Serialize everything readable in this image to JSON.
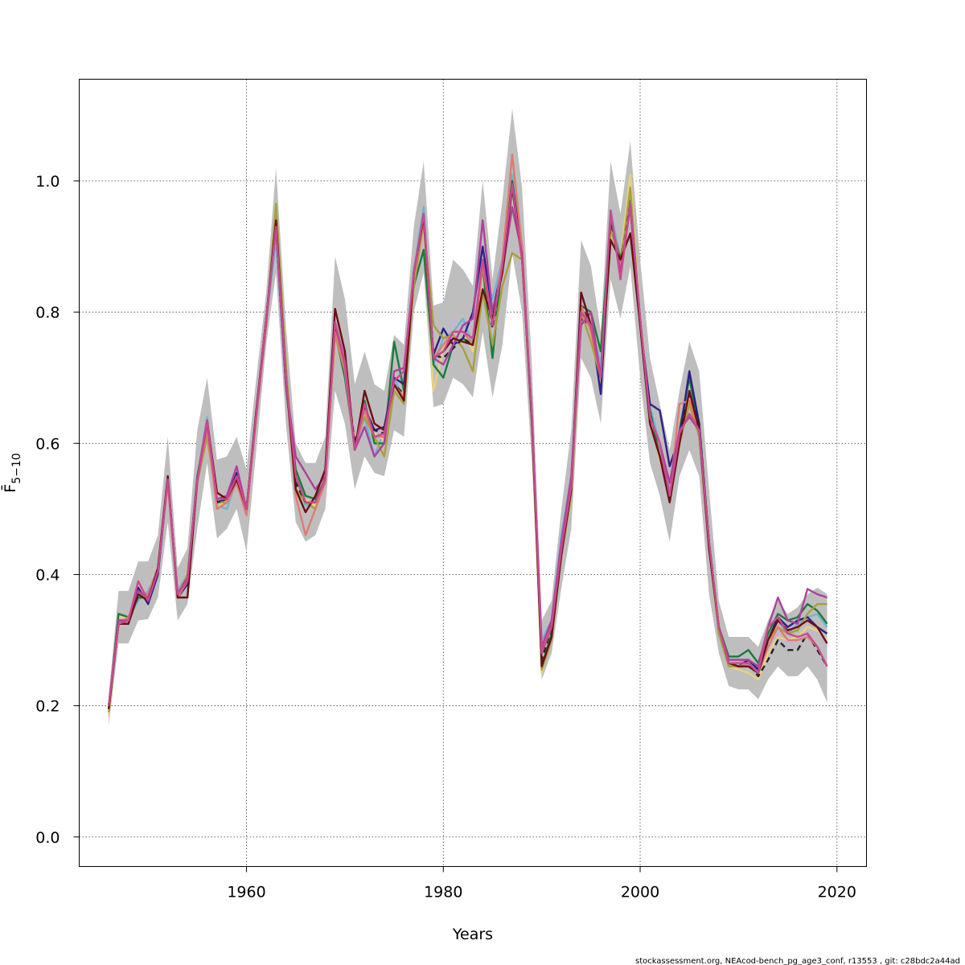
{
  "chart_data": {
    "type": "line",
    "title": "",
    "xlabel": "Years",
    "ylabel": "F̄",
    "ylabel_subscript": "5−10",
    "xlim": [
      1943,
      2023
    ],
    "ylim": [
      -0.045,
      1.155
    ],
    "x_ticks": [
      1960,
      1980,
      2000,
      2020
    ],
    "y_ticks": [
      0.0,
      0.2,
      0.4,
      0.6,
      0.8,
      1.0
    ],
    "x_tick_labels": [
      "1960",
      "1980",
      "2000",
      "2020"
    ],
    "y_tick_labels": [
      "0.0",
      "0.2",
      "0.4",
      "0.6",
      "0.8",
      "1.0"
    ],
    "grid": true,
    "years": [
      1946,
      1947,
      1948,
      1949,
      1950,
      1951,
      1952,
      1953,
      1954,
      1955,
      1956,
      1957,
      1958,
      1959,
      1960,
      1961,
      1962,
      1963,
      1964,
      1965,
      1966,
      1967,
      1968,
      1969,
      1970,
      1971,
      1972,
      1973,
      1974,
      1975,
      1976,
      1977,
      1978,
      1979,
      1980,
      1981,
      1982,
      1983,
      1984,
      1985,
      1986,
      1987,
      1988,
      1989,
      1990,
      1991,
      1992,
      1993,
      1994,
      1995,
      1996,
      1997,
      1998,
      1999,
      2000,
      2001,
      2002,
      2003,
      2004,
      2005,
      2006,
      2007,
      2008,
      2009,
      2010,
      2011,
      2012,
      2013,
      2014,
      2015,
      2016,
      2017,
      2018,
      2019
    ],
    "band": {
      "color": "#bebebe",
      "lower": [
        0.17,
        0.295,
        0.295,
        0.33,
        0.332,
        0.365,
        0.48,
        0.33,
        0.355,
        0.47,
        0.57,
        0.455,
        0.47,
        0.5,
        0.435,
        0.59,
        0.75,
        0.86,
        0.63,
        0.48,
        0.45,
        0.46,
        0.5,
        0.68,
        0.63,
        0.53,
        0.58,
        0.555,
        0.55,
        0.62,
        0.61,
        0.8,
        0.86,
        0.655,
        0.66,
        0.7,
        0.69,
        0.67,
        0.77,
        0.67,
        0.75,
        0.89,
        0.8,
        0.57,
        0.24,
        0.28,
        0.38,
        0.47,
        0.73,
        0.7,
        0.63,
        0.85,
        0.79,
        0.87,
        0.7,
        0.57,
        0.52,
        0.45,
        0.55,
        0.59,
        0.55,
        0.37,
        0.28,
        0.23,
        0.225,
        0.225,
        0.21,
        0.24,
        0.26,
        0.245,
        0.245,
        0.26,
        0.24,
        0.205
      ],
      "upper": [
        0.215,
        0.375,
        0.375,
        0.42,
        0.42,
        0.46,
        0.61,
        0.41,
        0.44,
        0.62,
        0.7,
        0.575,
        0.58,
        0.61,
        0.56,
        0.7,
        0.83,
        1.02,
        0.78,
        0.6,
        0.57,
        0.57,
        0.61,
        0.885,
        0.82,
        0.69,
        0.74,
        0.69,
        0.68,
        0.765,
        0.75,
        0.93,
        1.03,
        0.81,
        0.815,
        0.88,
        0.865,
        0.84,
        1.0,
        0.85,
        0.97,
        1.11,
        0.99,
        0.72,
        0.33,
        0.36,
        0.5,
        0.62,
        0.91,
        0.87,
        0.77,
        1.03,
        0.95,
        1.06,
        0.88,
        0.73,
        0.66,
        0.59,
        0.68,
        0.755,
        0.71,
        0.53,
        0.36,
        0.305,
        0.305,
        0.305,
        0.29,
        0.33,
        0.36,
        0.34,
        0.35,
        0.37,
        0.38,
        0.37
      ]
    },
    "series": [
      {
        "color": "#c8b2d8",
        "style": "solid",
        "values": [
          0.195,
          0.33,
          0.33,
          0.37,
          0.37,
          0.41,
          0.545,
          0.37,
          0.395,
          0.545,
          0.625,
          0.51,
          0.52,
          0.55,
          0.5,
          0.64,
          0.79,
          0.93,
          0.7,
          0.54,
          0.51,
          0.515,
          0.55,
          0.78,
          0.72,
          0.6,
          0.655,
          0.62,
          0.615,
          0.69,
          0.675,
          0.86,
          0.94,
          0.73,
          0.74,
          0.79,
          0.775,
          0.76,
          0.88,
          0.76,
          0.86,
          1.0,
          0.895,
          0.645,
          0.28,
          0.32,
          0.44,
          0.545,
          0.82,
          0.78,
          0.7,
          0.94,
          0.87,
          0.96,
          0.79,
          0.65,
          0.59,
          0.52,
          0.615,
          0.675,
          0.63,
          0.45,
          0.32,
          0.265,
          0.265,
          0.265,
          0.25,
          0.285,
          0.31,
          0.295,
          0.3,
          0.315,
          0.31,
          0.29
        ]
      },
      {
        "color": "#72b3d2",
        "style": "solid",
        "values": [
          0.2,
          0.325,
          0.335,
          0.36,
          0.375,
          0.405,
          0.54,
          0.375,
          0.4,
          0.55,
          0.64,
          0.505,
          0.5,
          0.545,
          0.495,
          0.645,
          0.785,
          0.91,
          0.69,
          0.55,
          0.505,
          0.51,
          0.545,
          0.77,
          0.73,
          0.59,
          0.64,
          0.58,
          0.62,
          0.7,
          0.665,
          0.865,
          0.96,
          0.72,
          0.76,
          0.77,
          0.79,
          0.75,
          0.87,
          0.82,
          0.88,
          1.01,
          0.9,
          0.64,
          0.3,
          0.33,
          0.46,
          0.55,
          0.8,
          0.78,
          0.72,
          0.955,
          0.88,
          0.97,
          0.78,
          0.655,
          0.6,
          0.53,
          0.62,
          0.68,
          0.625,
          0.44,
          0.32,
          0.27,
          0.27,
          0.265,
          0.255,
          0.3,
          0.33,
          0.31,
          0.325,
          0.335,
          0.34,
          0.32
        ]
      },
      {
        "color": "#e8d27b",
        "style": "solid",
        "values": [
          0.185,
          0.335,
          0.335,
          0.365,
          0.37,
          0.41,
          0.54,
          0.37,
          0.4,
          0.545,
          0.62,
          0.5,
          0.515,
          0.54,
          0.495,
          0.65,
          0.78,
          0.955,
          0.7,
          0.53,
          0.515,
          0.505,
          0.54,
          0.775,
          0.72,
          0.59,
          0.65,
          0.615,
          0.605,
          0.68,
          0.66,
          0.85,
          0.93,
          0.68,
          0.745,
          0.77,
          0.77,
          0.74,
          0.86,
          0.78,
          0.87,
          0.995,
          0.88,
          0.63,
          0.25,
          0.31,
          0.43,
          0.53,
          0.81,
          0.77,
          0.69,
          0.94,
          0.88,
          1.01,
          0.78,
          0.64,
          0.575,
          0.52,
          0.6,
          0.665,
          0.62,
          0.44,
          0.31,
          0.26,
          0.255,
          0.25,
          0.24,
          0.28,
          0.305,
          0.3,
          0.305,
          0.32,
          0.315,
          0.3
        ]
      },
      {
        "color": "#1a7a3a",
        "style": "solid",
        "values": [
          0.195,
          0.34,
          0.335,
          0.365,
          0.365,
          0.405,
          0.545,
          0.37,
          0.39,
          0.55,
          0.625,
          0.51,
          0.515,
          0.55,
          0.495,
          0.645,
          0.79,
          0.93,
          0.69,
          0.56,
          0.52,
          0.515,
          0.545,
          0.77,
          0.7,
          0.595,
          0.665,
          0.6,
          0.6,
          0.755,
          0.68,
          0.84,
          0.895,
          0.72,
          0.7,
          0.75,
          0.76,
          0.75,
          0.87,
          0.73,
          0.88,
          1.0,
          0.89,
          0.64,
          0.26,
          0.31,
          0.44,
          0.54,
          0.81,
          0.8,
          0.74,
          0.94,
          0.88,
          0.97,
          0.78,
          0.65,
          0.58,
          0.52,
          0.62,
          0.7,
          0.62,
          0.45,
          0.32,
          0.275,
          0.275,
          0.285,
          0.265,
          0.31,
          0.34,
          0.33,
          0.335,
          0.355,
          0.345,
          0.325
        ]
      },
      {
        "color": "#2e1f8a",
        "style": "solid",
        "values": [
          0.2,
          0.325,
          0.325,
          0.38,
          0.355,
          0.4,
          0.545,
          0.365,
          0.385,
          0.54,
          0.63,
          0.51,
          0.515,
          0.555,
          0.5,
          0.65,
          0.79,
          0.93,
          0.69,
          0.55,
          0.51,
          0.51,
          0.545,
          0.78,
          0.72,
          0.59,
          0.655,
          0.62,
          0.625,
          0.7,
          0.69,
          0.86,
          0.94,
          0.735,
          0.775,
          0.75,
          0.76,
          0.8,
          0.9,
          0.8,
          0.87,
          0.995,
          0.89,
          0.63,
          0.28,
          0.325,
          0.44,
          0.54,
          0.79,
          0.78,
          0.675,
          0.935,
          0.87,
          0.96,
          0.78,
          0.66,
          0.65,
          0.565,
          0.61,
          0.71,
          0.63,
          0.45,
          0.31,
          0.265,
          0.26,
          0.27,
          0.255,
          0.3,
          0.335,
          0.32,
          0.33,
          0.335,
          0.32,
          0.31
        ]
      },
      {
        "color": "#a8a038",
        "style": "solid",
        "values": [
          0.19,
          0.33,
          0.33,
          0.37,
          0.365,
          0.41,
          0.54,
          0.37,
          0.4,
          0.54,
          0.61,
          0.51,
          0.51,
          0.54,
          0.495,
          0.64,
          0.78,
          0.965,
          0.72,
          0.53,
          0.51,
          0.5,
          0.545,
          0.765,
          0.71,
          0.6,
          0.64,
          0.61,
          0.58,
          0.68,
          0.66,
          0.84,
          0.935,
          0.78,
          0.76,
          0.765,
          0.745,
          0.71,
          0.83,
          0.75,
          0.84,
          0.89,
          0.88,
          0.635,
          0.255,
          0.3,
          0.43,
          0.52,
          0.8,
          0.755,
          0.7,
          0.93,
          0.87,
          0.99,
          0.78,
          0.63,
          0.58,
          0.51,
          0.6,
          0.66,
          0.61,
          0.44,
          0.31,
          0.26,
          0.26,
          0.26,
          0.25,
          0.3,
          0.32,
          0.31,
          0.315,
          0.34,
          0.355,
          0.355
        ]
      },
      {
        "color": "#222222",
        "style": "dashed",
        "values": [
          0.2,
          0.33,
          0.33,
          0.37,
          0.37,
          0.41,
          0.545,
          0.37,
          0.395,
          0.545,
          0.63,
          0.51,
          0.515,
          0.55,
          0.5,
          0.645,
          0.79,
          0.935,
          0.7,
          0.54,
          0.51,
          0.51,
          0.545,
          0.775,
          0.72,
          0.6,
          0.655,
          0.62,
          0.615,
          0.69,
          0.675,
          0.86,
          0.945,
          0.735,
          0.73,
          0.745,
          0.76,
          0.75,
          0.87,
          0.775,
          0.87,
          0.995,
          0.89,
          0.64,
          0.27,
          0.32,
          0.44,
          0.54,
          0.81,
          0.78,
          0.7,
          0.94,
          0.87,
          0.965,
          0.79,
          0.64,
          0.6,
          0.52,
          0.615,
          0.675,
          0.63,
          0.45,
          0.32,
          0.265,
          0.26,
          0.265,
          0.245,
          0.27,
          0.3,
          0.285,
          0.285,
          0.31,
          0.285,
          0.26
        ]
      },
      {
        "color": "#e07a70",
        "style": "solid",
        "values": [
          0.2,
          0.325,
          0.335,
          0.37,
          0.37,
          0.41,
          0.54,
          0.365,
          0.39,
          0.54,
          0.62,
          0.5,
          0.51,
          0.54,
          0.49,
          0.64,
          0.78,
          0.94,
          0.7,
          0.52,
          0.46,
          0.5,
          0.54,
          0.77,
          0.71,
          0.59,
          0.65,
          0.61,
          0.61,
          0.69,
          0.67,
          0.85,
          0.94,
          0.73,
          0.75,
          0.77,
          0.77,
          0.75,
          0.87,
          0.78,
          0.88,
          1.04,
          0.9,
          0.64,
          0.29,
          0.32,
          0.43,
          0.53,
          0.81,
          0.77,
          0.7,
          0.95,
          0.87,
          0.96,
          0.79,
          0.63,
          0.58,
          0.52,
          0.66,
          0.665,
          0.62,
          0.44,
          0.32,
          0.265,
          0.26,
          0.265,
          0.25,
          0.29,
          0.32,
          0.3,
          0.3,
          0.305,
          0.29,
          0.26
        ]
      },
      {
        "color": "#b0409a",
        "style": "solid",
        "values": [
          0.2,
          0.33,
          0.33,
          0.375,
          0.365,
          0.405,
          0.545,
          0.37,
          0.395,
          0.545,
          0.63,
          0.515,
          0.52,
          0.565,
          0.5,
          0.645,
          0.785,
          0.93,
          0.69,
          0.58,
          0.555,
          0.53,
          0.55,
          0.785,
          0.72,
          0.59,
          0.625,
          0.58,
          0.6,
          0.71,
          0.715,
          0.86,
          0.95,
          0.73,
          0.72,
          0.75,
          0.78,
          0.79,
          0.94,
          0.8,
          0.86,
          0.96,
          0.89,
          0.64,
          0.29,
          0.33,
          0.45,
          0.55,
          0.78,
          0.8,
          0.7,
          0.95,
          0.86,
          0.96,
          0.79,
          0.64,
          0.6,
          0.54,
          0.62,
          0.64,
          0.62,
          0.44,
          0.32,
          0.27,
          0.27,
          0.27,
          0.26,
          0.32,
          0.365,
          0.33,
          0.325,
          0.378,
          0.37,
          0.365
        ]
      },
      {
        "color": "#6b0f12",
        "style": "solid",
        "values": [
          0.195,
          0.325,
          0.325,
          0.37,
          0.36,
          0.41,
          0.55,
          0.365,
          0.365,
          0.545,
          0.635,
          0.525,
          0.515,
          0.545,
          0.5,
          0.65,
          0.79,
          0.94,
          0.7,
          0.53,
          0.495,
          0.52,
          0.56,
          0.805,
          0.74,
          0.59,
          0.68,
          0.63,
          0.62,
          0.69,
          0.665,
          0.86,
          0.945,
          0.73,
          0.74,
          0.76,
          0.755,
          0.75,
          0.835,
          0.79,
          0.86,
          0.99,
          0.88,
          0.64,
          0.26,
          0.305,
          0.43,
          0.53,
          0.83,
          0.78,
          0.7,
          0.91,
          0.88,
          0.92,
          0.78,
          0.63,
          0.58,
          0.51,
          0.6,
          0.68,
          0.62,
          0.44,
          0.32,
          0.265,
          0.26,
          0.26,
          0.25,
          0.3,
          0.33,
          0.315,
          0.32,
          0.33,
          0.32,
          0.295
        ]
      },
      {
        "color": "#c84a90",
        "style": "solid",
        "values": [
          0.2,
          0.325,
          0.33,
          0.39,
          0.36,
          0.405,
          0.545,
          0.37,
          0.39,
          0.545,
          0.635,
          0.515,
          0.515,
          0.55,
          0.5,
          0.645,
          0.79,
          0.93,
          0.7,
          0.55,
          0.51,
          0.51,
          0.545,
          0.785,
          0.725,
          0.59,
          0.66,
          0.61,
          0.615,
          0.695,
          0.71,
          0.86,
          0.95,
          0.73,
          0.74,
          0.77,
          0.77,
          0.76,
          0.88,
          0.78,
          0.87,
          0.995,
          0.88,
          0.645,
          0.28,
          0.32,
          0.44,
          0.535,
          0.8,
          0.78,
          0.7,
          0.955,
          0.85,
          0.965,
          0.79,
          0.64,
          0.6,
          0.52,
          0.615,
          0.645,
          0.62,
          0.45,
          0.32,
          0.265,
          0.265,
          0.265,
          0.25,
          0.32,
          0.335,
          0.31,
          0.305,
          0.31,
          0.29,
          0.26
        ]
      }
    ]
  },
  "footer": {
    "note": "stockassessment.org, NEAcod-bench_pg_age3_conf, r13553 , git: c28bdc2a44ad"
  }
}
